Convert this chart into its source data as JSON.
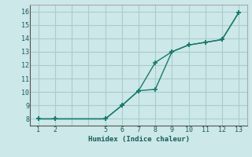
{
  "xlabel": "Humidex (Indice chaleur)",
  "bg_color": "#cce8e8",
  "grid_color": "#aacccc",
  "line_color": "#1a7a6e",
  "line1_x": [
    1,
    2,
    5,
    6,
    7,
    8,
    9,
    10,
    11,
    12,
    13
  ],
  "line1_y": [
    8.0,
    8.0,
    8.0,
    9.0,
    10.1,
    10.2,
    13.0,
    13.5,
    13.7,
    13.9,
    15.9
  ],
  "line2_x": [
    1,
    2,
    5,
    6,
    7,
    8,
    9,
    10,
    11,
    12,
    13
  ],
  "line2_y": [
    8.0,
    8.0,
    8.0,
    9.0,
    10.1,
    12.2,
    13.0,
    13.5,
    13.7,
    13.9,
    15.9
  ],
  "xlim": [
    0.5,
    13.5
  ],
  "ylim": [
    7.5,
    16.5
  ],
  "xticks": [
    1,
    2,
    5,
    6,
    7,
    8,
    9,
    10,
    11,
    12,
    13
  ],
  "yticks": [
    8,
    9,
    10,
    11,
    12,
    13,
    14,
    15,
    16
  ],
  "grid_xticks": [
    1,
    2,
    3,
    4,
    5,
    6,
    7,
    8,
    9,
    10,
    11,
    12,
    13
  ]
}
